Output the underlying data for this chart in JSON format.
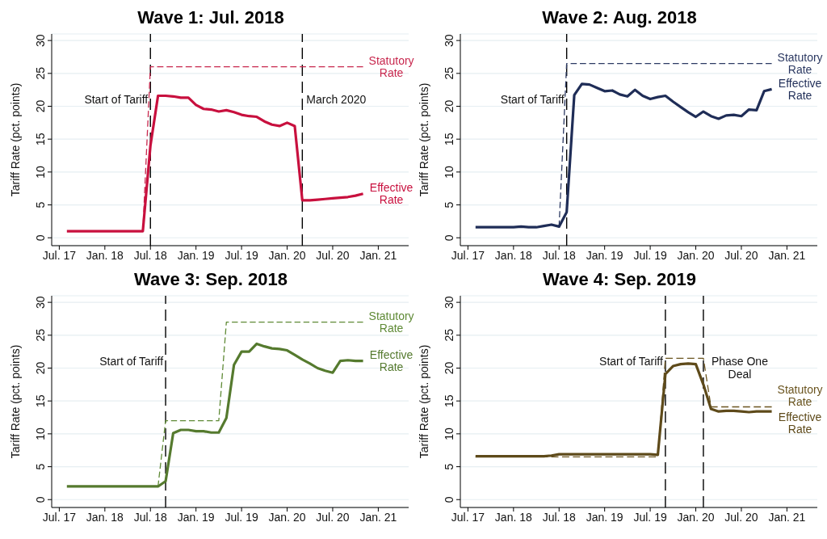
{
  "chart_data": [
    {
      "type": "line",
      "title": "Wave 1: Jul. 2018",
      "ylabel": "Tariff Rate (pct. points)",
      "grid": "y",
      "marker": "none",
      "x": [
        "2017-08",
        "2017-09",
        "2017-10",
        "2017-11",
        "2017-12",
        "2018-01",
        "2018-02",
        "2018-03",
        "2018-04",
        "2018-05",
        "2018-06",
        "2018-07",
        "2018-08",
        "2018-09",
        "2018-10",
        "2018-11",
        "2018-12",
        "2019-01",
        "2019-02",
        "2019-03",
        "2019-04",
        "2019-05",
        "2019-06",
        "2019-07",
        "2019-08",
        "2019-09",
        "2019-10",
        "2019-11",
        "2019-12",
        "2020-01",
        "2020-02",
        "2020-03",
        "2020-04",
        "2020-05",
        "2020-06",
        "2020-07",
        "2020-08",
        "2020-09",
        "2020-10",
        "2020-11"
      ],
      "xlim": [
        "2017-06",
        "2021-05"
      ],
      "xticks": [
        {
          "value": "2017-07",
          "label": "Jul. 17"
        },
        {
          "value": "2018-01",
          "label": "Jan. 18"
        },
        {
          "value": "2018-07",
          "label": "Jul. 18"
        },
        {
          "value": "2019-01",
          "label": "Jan. 19"
        },
        {
          "value": "2019-07",
          "label": "Jul. 19"
        },
        {
          "value": "2020-01",
          "label": "Jan. 20"
        },
        {
          "value": "2020-07",
          "label": "Jul. 20"
        },
        {
          "value": "2021-01",
          "label": "Jan. 21"
        }
      ],
      "ylim": [
        -1.2,
        31
      ],
      "yticks": [
        0,
        5,
        10,
        15,
        20,
        25,
        30
      ],
      "series": [
        {
          "name": "Statutory Rate",
          "color": "#c8284e",
          "line_style": "dashed",
          "values": [
            null,
            null,
            null,
            null,
            null,
            null,
            null,
            null,
            null,
            null,
            1.0,
            26,
            26,
            26,
            26,
            26,
            26,
            26,
            26,
            26,
            26,
            26,
            26,
            26,
            26,
            26,
            26,
            26,
            26,
            26,
            26,
            26,
            26,
            26,
            26,
            26,
            26,
            26,
            26,
            26
          ]
        },
        {
          "name": "Effective Rate",
          "color": "#c8103e",
          "line_style": "solid",
          "values": [
            1.0,
            1.0,
            1.0,
            1.0,
            1.0,
            1.0,
            1.0,
            1.0,
            1.0,
            1.0,
            1.0,
            14,
            21.6,
            21.6,
            21.5,
            21.3,
            21.3,
            20.2,
            19.6,
            19.5,
            19.2,
            19.4,
            19.1,
            18.7,
            18.5,
            18.4,
            17.7,
            17.2,
            17.0,
            17.5,
            17.0,
            5.7,
            5.7,
            5.8,
            5.9,
            6.0,
            6.1,
            6.2,
            6.4,
            6.7
          ]
        }
      ],
      "ref_lines": [
        {
          "axis": "x",
          "value": "2018-07",
          "label": "Start of Tariff",
          "color": "#000000",
          "line_style": "dashed"
        },
        {
          "axis": "x",
          "value": "2020-03",
          "label": "March 2020",
          "color": "#000000",
          "line_style": "dashed"
        }
      ]
    },
    {
      "type": "line",
      "title": "Wave 2: Aug. 2018",
      "ylabel": "Tariff Rate (pct. points)",
      "grid": "y",
      "marker": "none",
      "x": [
        "2017-08",
        "2017-09",
        "2017-10",
        "2017-11",
        "2017-12",
        "2018-01",
        "2018-02",
        "2018-03",
        "2018-04",
        "2018-05",
        "2018-06",
        "2018-07",
        "2018-08",
        "2018-09",
        "2018-10",
        "2018-11",
        "2018-12",
        "2019-01",
        "2019-02",
        "2019-03",
        "2019-04",
        "2019-05",
        "2019-06",
        "2019-07",
        "2019-08",
        "2019-09",
        "2019-10",
        "2019-11",
        "2019-12",
        "2020-01",
        "2020-02",
        "2020-03",
        "2020-04",
        "2020-05",
        "2020-06",
        "2020-07",
        "2020-08",
        "2020-09",
        "2020-10",
        "2020-11"
      ],
      "xlim": [
        "2017-06",
        "2021-05"
      ],
      "xticks": [
        {
          "value": "2017-07",
          "label": "Jul. 17"
        },
        {
          "value": "2018-01",
          "label": "Jan. 18"
        },
        {
          "value": "2018-07",
          "label": "Jul. 18"
        },
        {
          "value": "2019-01",
          "label": "Jan. 19"
        },
        {
          "value": "2019-07",
          "label": "Jul. 19"
        },
        {
          "value": "2020-01",
          "label": "Jan. 20"
        },
        {
          "value": "2020-07",
          "label": "Jul. 20"
        },
        {
          "value": "2021-01",
          "label": "Jan. 21"
        }
      ],
      "ylim": [
        -1.2,
        31
      ],
      "yticks": [
        0,
        5,
        10,
        15,
        20,
        25,
        30
      ],
      "series": [
        {
          "name": "Statutory Rate",
          "color": "#2d3a63",
          "line_style": "dashed",
          "values": [
            null,
            null,
            null,
            null,
            null,
            null,
            null,
            null,
            null,
            null,
            null,
            1.7,
            26.5,
            26.5,
            26.5,
            26.5,
            26.5,
            26.5,
            26.5,
            26.5,
            26.5,
            26.5,
            26.5,
            26.5,
            26.5,
            26.5,
            26.5,
            26.5,
            26.5,
            26.5,
            26.5,
            26.5,
            26.5,
            26.5,
            26.5,
            26.5,
            26.5,
            26.5,
            26.5,
            26.5
          ]
        },
        {
          "name": "Effective Rate",
          "color": "#1f2d57",
          "line_style": "solid",
          "values": [
            1.6,
            1.6,
            1.6,
            1.6,
            1.6,
            1.6,
            1.7,
            1.6,
            1.6,
            1.8,
            2.0,
            1.7,
            3.9,
            21.7,
            23.4,
            23.3,
            22.8,
            22.3,
            22.4,
            21.8,
            21.5,
            22.5,
            21.6,
            21.1,
            21.4,
            21.6,
            20.7,
            19.9,
            19.1,
            18.4,
            19.2,
            18.5,
            18.1,
            18.6,
            18.7,
            18.5,
            19.5,
            19.4,
            22.3,
            22.6
          ]
        }
      ],
      "ref_lines": [
        {
          "axis": "x",
          "value": "2018-08",
          "label": "Start of Tariff",
          "color": "#000000",
          "line_style": "dashed"
        }
      ]
    },
    {
      "type": "line",
      "title": "Wave 3: Sep. 2018",
      "ylabel": "Tariff Rate (pct. points)",
      "grid": "y",
      "marker": "none",
      "x": [
        "2017-08",
        "2017-09",
        "2017-10",
        "2017-11",
        "2017-12",
        "2018-01",
        "2018-02",
        "2018-03",
        "2018-04",
        "2018-05",
        "2018-06",
        "2018-07",
        "2018-08",
        "2018-09",
        "2018-10",
        "2018-11",
        "2018-12",
        "2019-01",
        "2019-02",
        "2019-03",
        "2019-04",
        "2019-05",
        "2019-06",
        "2019-07",
        "2019-08",
        "2019-09",
        "2019-10",
        "2019-11",
        "2019-12",
        "2020-01",
        "2020-02",
        "2020-03",
        "2020-04",
        "2020-05",
        "2020-06",
        "2020-07",
        "2020-08",
        "2020-09",
        "2020-10",
        "2020-11"
      ],
      "xlim": [
        "2017-06",
        "2021-05"
      ],
      "xticks": [
        {
          "value": "2017-07",
          "label": "Jul. 17"
        },
        {
          "value": "2018-01",
          "label": "Jan. 18"
        },
        {
          "value": "2018-07",
          "label": "Jul. 18"
        },
        {
          "value": "2019-01",
          "label": "Jan. 19"
        },
        {
          "value": "2019-07",
          "label": "Jul. 19"
        },
        {
          "value": "2020-01",
          "label": "Jan. 20"
        },
        {
          "value": "2020-07",
          "label": "Jul. 20"
        },
        {
          "value": "2021-01",
          "label": "Jan. 21"
        }
      ],
      "ylim": [
        -1.2,
        31
      ],
      "yticks": [
        0,
        5,
        10,
        15,
        20,
        25,
        30
      ],
      "series": [
        {
          "name": "Statutory Rate",
          "color": "#5f8a36",
          "line_style": "dashed",
          "values": [
            null,
            null,
            null,
            null,
            null,
            null,
            null,
            null,
            null,
            null,
            null,
            null,
            2.0,
            12,
            12,
            12,
            12,
            12,
            12,
            12,
            12,
            27,
            27,
            27,
            27,
            27,
            27,
            27,
            27,
            27,
            27,
            27,
            27,
            27,
            27,
            27,
            27,
            27,
            27,
            27
          ]
        },
        {
          "name": "Effective Rate",
          "color": "#557a2e",
          "line_style": "solid",
          "values": [
            2.0,
            2.0,
            2.0,
            2.0,
            2.0,
            2.0,
            2.0,
            2.0,
            2.0,
            2.0,
            2.0,
            2.0,
            2.0,
            2.8,
            10.1,
            10.6,
            10.6,
            10.4,
            10.4,
            10.2,
            10.2,
            12.4,
            20.5,
            22.5,
            22.5,
            23.7,
            23.3,
            23.0,
            22.9,
            22.7,
            22.0,
            21.3,
            20.7,
            20.0,
            19.6,
            19.3,
            21.1,
            21.2,
            21.1,
            21.1
          ]
        }
      ],
      "ref_lines": [
        {
          "axis": "x",
          "value": "2018-09",
          "label": "Start of Tariff",
          "color": "#000000",
          "line_style": "dashed"
        }
      ]
    },
    {
      "type": "line",
      "title": "Wave 4: Sep. 2019",
      "ylabel": "Tariff Rate (pct. points)",
      "grid": "y",
      "marker": "none",
      "x": [
        "2017-08",
        "2017-09",
        "2017-10",
        "2017-11",
        "2017-12",
        "2018-01",
        "2018-02",
        "2018-03",
        "2018-04",
        "2018-05",
        "2018-06",
        "2018-07",
        "2018-08",
        "2018-09",
        "2018-10",
        "2018-11",
        "2018-12",
        "2019-01",
        "2019-02",
        "2019-03",
        "2019-04",
        "2019-05",
        "2019-06",
        "2019-07",
        "2019-08",
        "2019-09",
        "2019-10",
        "2019-11",
        "2019-12",
        "2020-01",
        "2020-02",
        "2020-03",
        "2020-04",
        "2020-05",
        "2020-06",
        "2020-07",
        "2020-08",
        "2020-09",
        "2020-10",
        "2020-11"
      ],
      "xlim": [
        "2017-06",
        "2021-05"
      ],
      "xticks": [
        {
          "value": "2017-07",
          "label": "Jul. 17"
        },
        {
          "value": "2018-01",
          "label": "Jan. 18"
        },
        {
          "value": "2018-07",
          "label": "Jul. 18"
        },
        {
          "value": "2019-01",
          "label": "Jan. 19"
        },
        {
          "value": "2019-07",
          "label": "Jul. 19"
        },
        {
          "value": "2020-01",
          "label": "Jan. 20"
        },
        {
          "value": "2020-07",
          "label": "Jul. 20"
        },
        {
          "value": "2021-01",
          "label": "Jan. 21"
        }
      ],
      "ylim": [
        -1.2,
        31
      ],
      "yticks": [
        0,
        5,
        10,
        15,
        20,
        25,
        30
      ],
      "series": [
        {
          "name": "Statutory Rate",
          "color": "#6b5520",
          "line_style": "dashed",
          "values": [
            6.5,
            6.5,
            6.5,
            6.5,
            6.5,
            6.5,
            6.5,
            6.5,
            6.5,
            6.5,
            6.5,
            6.5,
            6.5,
            6.5,
            6.5,
            6.5,
            6.5,
            6.5,
            6.5,
            6.5,
            6.5,
            6.5,
            6.5,
            6.5,
            6.5,
            21.5,
            21.5,
            21.5,
            21.5,
            21.5,
            21.5,
            14.1,
            14.1,
            14.1,
            14.1,
            14.1,
            14.1,
            14.1,
            14.1,
            14.1
          ]
        },
        {
          "name": "Effective Rate",
          "color": "#5e4a1a",
          "line_style": "solid",
          "values": [
            6.6,
            6.6,
            6.6,
            6.6,
            6.6,
            6.6,
            6.6,
            6.6,
            6.6,
            6.6,
            6.7,
            6.9,
            6.9,
            6.9,
            6.9,
            6.9,
            6.9,
            6.9,
            6.9,
            6.9,
            6.9,
            6.9,
            6.9,
            6.9,
            6.8,
            19.1,
            20.3,
            20.6,
            20.7,
            20.6,
            17.5,
            13.8,
            13.4,
            13.5,
            13.5,
            13.4,
            13.3,
            13.4,
            13.4,
            13.4
          ]
        }
      ],
      "ref_lines": [
        {
          "axis": "x",
          "value": "2019-09",
          "label": "Start of Tariff",
          "color": "#000000",
          "line_style": "dashed"
        },
        {
          "axis": "x",
          "value": "2020-02",
          "label": "Phase One Deal",
          "color": "#000000",
          "line_style": "dashed"
        }
      ]
    }
  ]
}
